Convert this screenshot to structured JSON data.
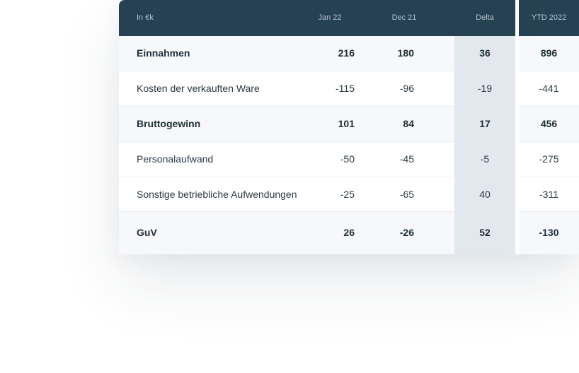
{
  "table": {
    "headers": {
      "label": "In €k",
      "jan": "Jan 22",
      "dec": "Dec 21",
      "delta": "Delta",
      "ytd": "YTD 2022"
    },
    "rows": [
      {
        "label": "Einnahmen",
        "jan": "216",
        "dec": "180",
        "delta": "36",
        "ytd": "896",
        "bold": true
      },
      {
        "label": "Kosten der verkauften Ware",
        "jan": "-115",
        "dec": "-96",
        "delta": "-19",
        "ytd": "-441",
        "bold": false
      },
      {
        "label": "Bruttogewinn",
        "jan": "101",
        "dec": "84",
        "delta": "17",
        "ytd": "456",
        "bold": true
      },
      {
        "label": "Personalaufwand",
        "jan": "-50",
        "dec": "-45",
        "delta": "-5",
        "ytd": "-275",
        "bold": false
      },
      {
        "label": "Sonstige betriebliche Aufwendungen",
        "jan": "-25",
        "dec": "-65",
        "delta": "40",
        "ytd": "-311",
        "bold": false
      },
      {
        "label": "GuV",
        "jan": "26",
        "dec": "-26",
        "delta": "52",
        "ytd": "-130",
        "bold": true
      }
    ]
  },
  "colors": {
    "header_bg": "#264152",
    "header_text": "#b4c3cd",
    "delta_column_bg": "#e2e8ee",
    "row_bg": "#f6f8fb",
    "alt_row_bg": "#ffffff",
    "text": "#2b3a44"
  }
}
